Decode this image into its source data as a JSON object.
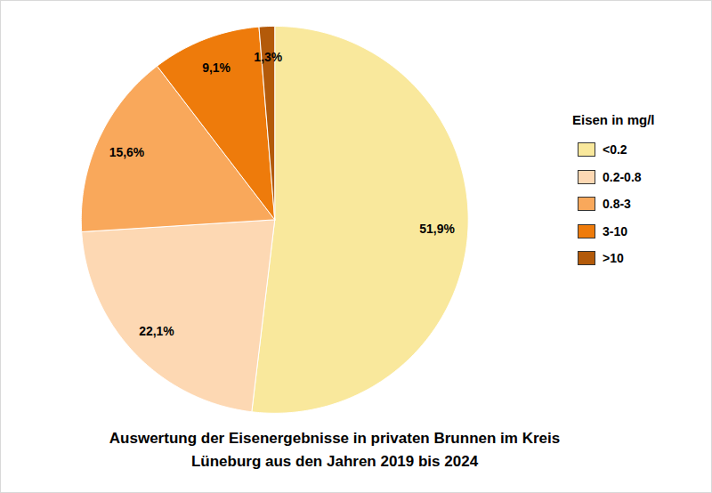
{
  "chart_data": {
    "type": "pie",
    "title": "Auswertung der Eisenergebnisse in privaten Brunnen im Kreis Lüneburg aus den Jahren 2019 bis 2024",
    "legend_title": "Eisen in mg/l",
    "categories": [
      "<0.2",
      "0.2-0.8",
      "0.8-3",
      "3-10",
      ">10"
    ],
    "values": [
      51.9,
      22.1,
      15.6,
      9.1,
      1.3
    ],
    "value_labels": [
      "51,9%",
      "22,1%",
      "15,6%",
      "9,1%",
      "1,3%"
    ],
    "colors": [
      "#f9e89c",
      "#fdd8b3",
      "#f9a85b",
      "#ee7b0b",
      "#b35a0a"
    ],
    "data_labels": true,
    "legend": "right"
  }
}
